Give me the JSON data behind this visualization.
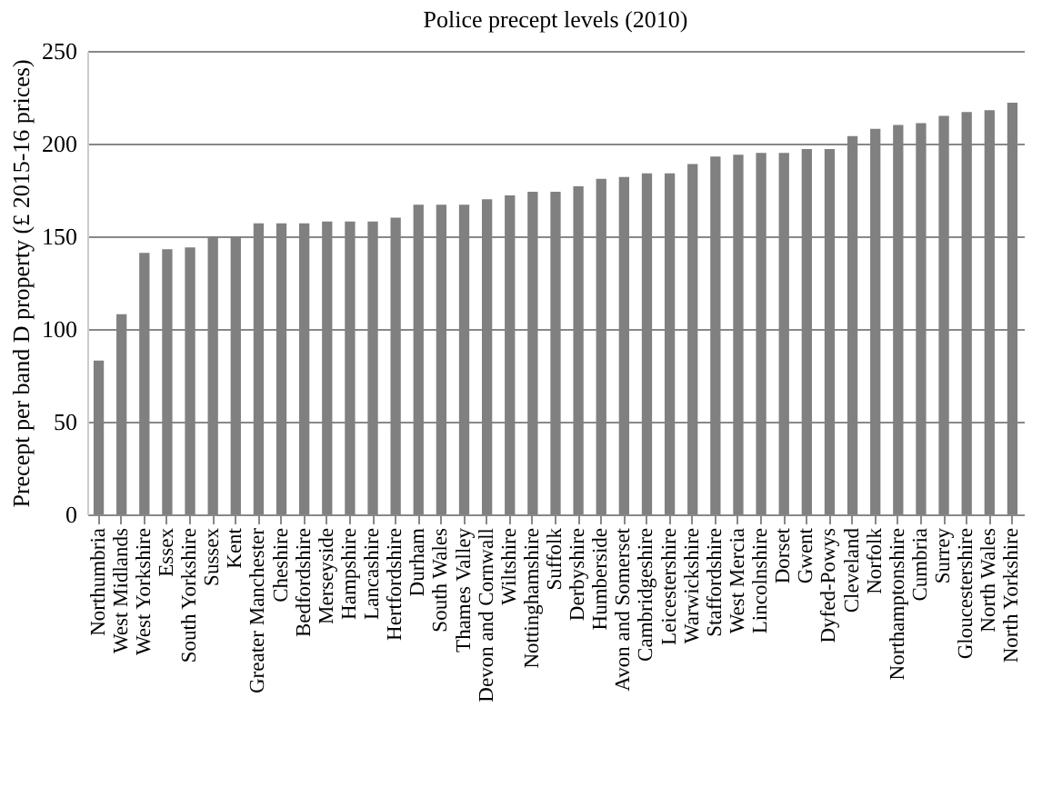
{
  "chart_data": {
    "type": "bar",
    "title": "Police precept levels (2010)",
    "ylabel": "Precept per band D property (£ 2015-16 prices)",
    "categories": [
      "Northumbria",
      "West Midlands",
      "West Yorkshire",
      "Essex",
      "South Yorkshire",
      "Sussex",
      "Kent",
      "Greater Manchester",
      "Cheshire",
      "Bedfordshire",
      "Merseyside",
      "Hampshire",
      "Lancashire",
      "Hertfordshire",
      "Durham",
      "South Wales",
      "Thames Valley",
      "Devon and Cornwall",
      "Wiltshire",
      "Nottinghamshire",
      "Suffolk",
      "Derbyshire",
      "Humberside",
      "Avon and Somerset",
      "Cambridgeshire",
      "Leicestershire",
      "Warwickshire",
      "Staffordshire",
      "West Mercia",
      "Lincolnshire",
      "Dorset",
      "Gwent",
      "Dyfed-Powys",
      "Cleveland",
      "Norfolk",
      "Northamptonshire",
      "Cumbria",
      "Surrey",
      "Gloucestershire",
      "North Wales",
      "North Yorkshire"
    ],
    "values": [
      83,
      108,
      141,
      143,
      144,
      150,
      150,
      157,
      157,
      157,
      158,
      158,
      158,
      160,
      167,
      167,
      167,
      170,
      172,
      174,
      174,
      177,
      181,
      182,
      184,
      184,
      189,
      193,
      194,
      195,
      195,
      197,
      197,
      204,
      208,
      210,
      211,
      215,
      217,
      218,
      222
    ],
    "color": "#808080",
    "ylim": [
      0,
      250
    ],
    "yticks": [
      0,
      50,
      100,
      150,
      200,
      250
    ],
    "grid": "y"
  }
}
